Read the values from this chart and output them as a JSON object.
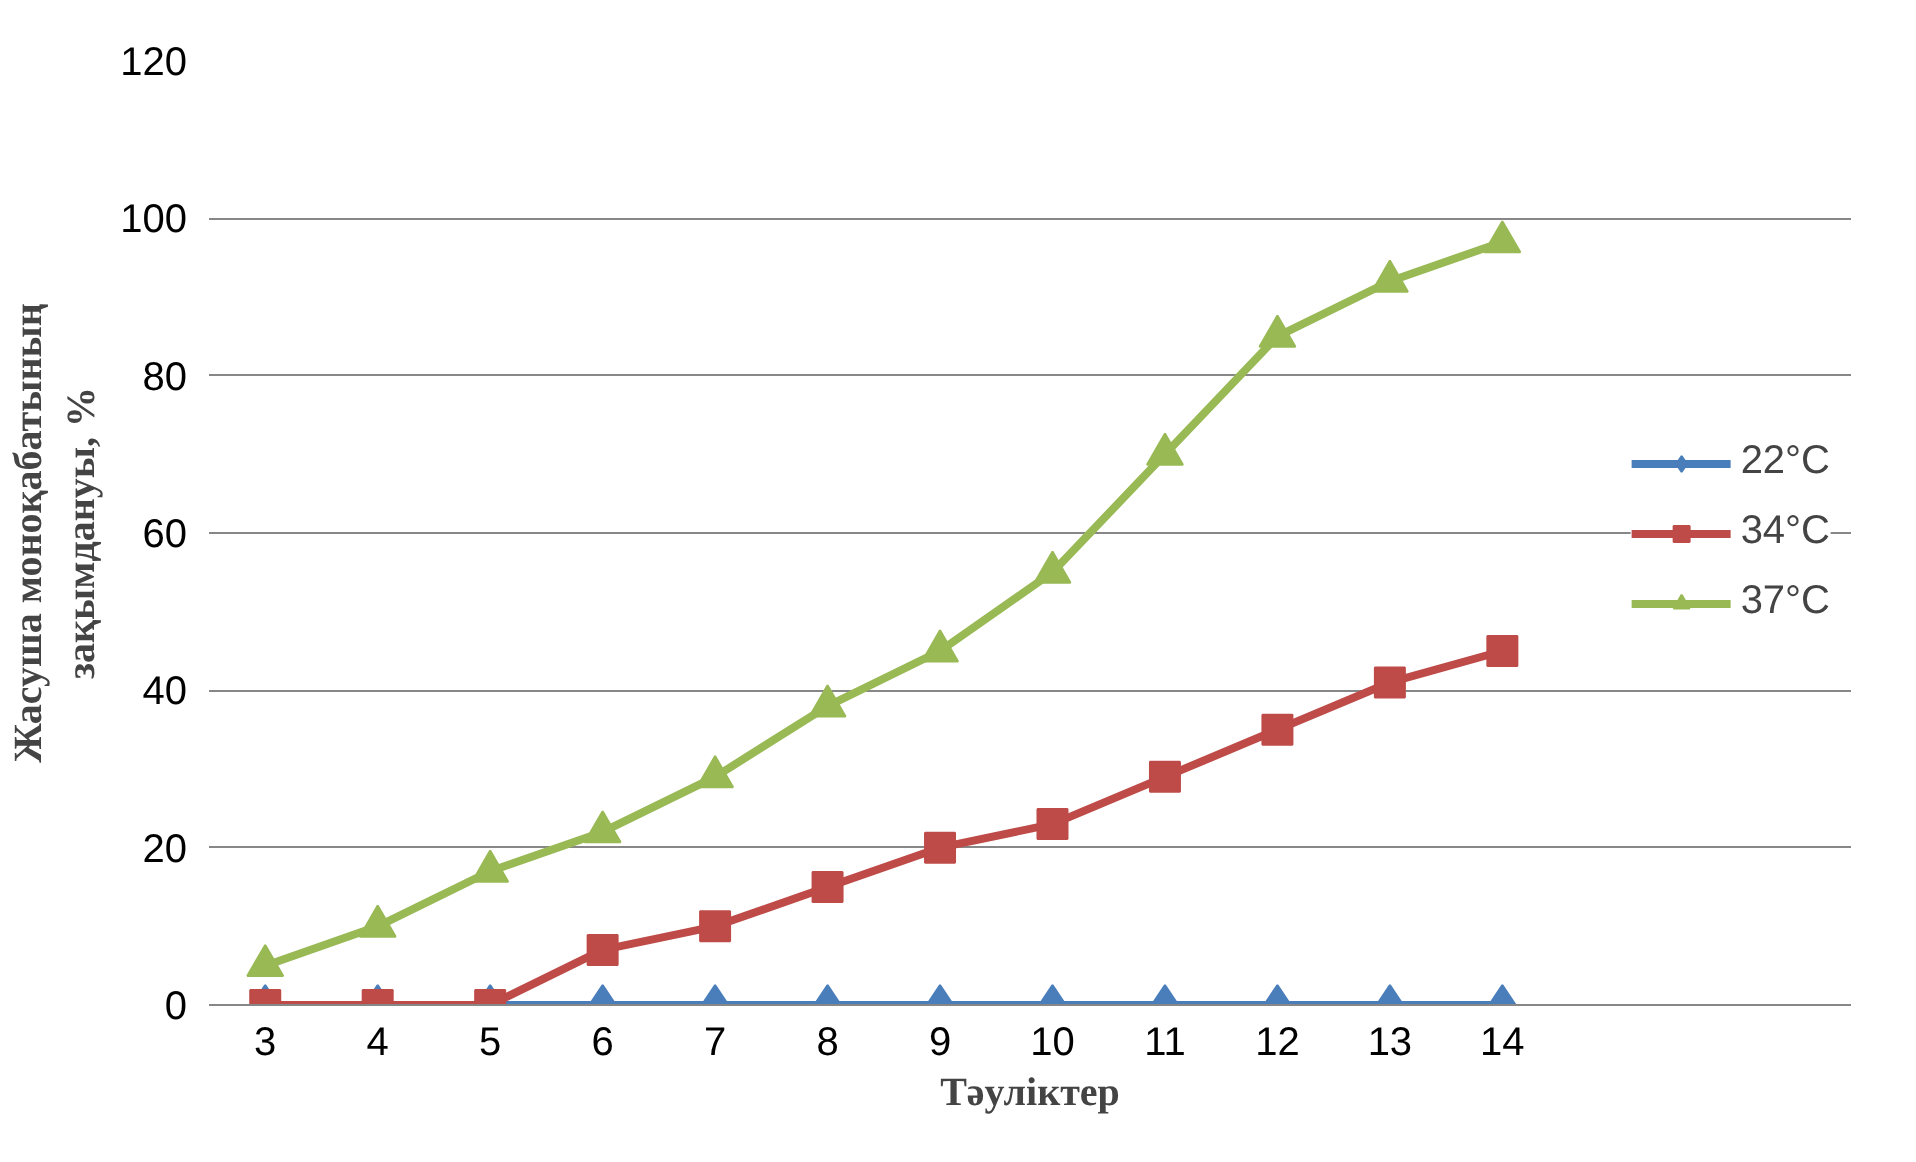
{
  "chart_data": {
    "type": "line",
    "xlabel": "Тәуліктер",
    "ylabel": "Жасуша моноқабатының зақымдануы, %",
    "categories": [
      "3",
      "4",
      "5",
      "6",
      "7",
      "8",
      "9",
      "10",
      "11",
      "12",
      "13",
      "14"
    ],
    "series": [
      {
        "name": "22°C",
        "color": "#4a7ebb",
        "marker": "diamond",
        "values": [
          0,
          0,
          0,
          0,
          0,
          0,
          0,
          0,
          0,
          0,
          0,
          0
        ]
      },
      {
        "name": "34°C",
        "color": "#be4b48",
        "marker": "square",
        "values": [
          0,
          0,
          0,
          7,
          10,
          15,
          20,
          23,
          29,
          35,
          41,
          45
        ]
      },
      {
        "name": "37°C",
        "color": "#98b954",
        "marker": "triangle",
        "values": [
          5,
          10,
          17,
          22,
          29,
          38,
          45,
          55,
          70,
          85,
          92,
          97
        ]
      }
    ],
    "ylim": [
      0,
      120
    ],
    "yticks": [
      0,
      20,
      40,
      60,
      80,
      100,
      120
    ],
    "grid": "y",
    "legend": "right",
    "line_style": "solid"
  }
}
